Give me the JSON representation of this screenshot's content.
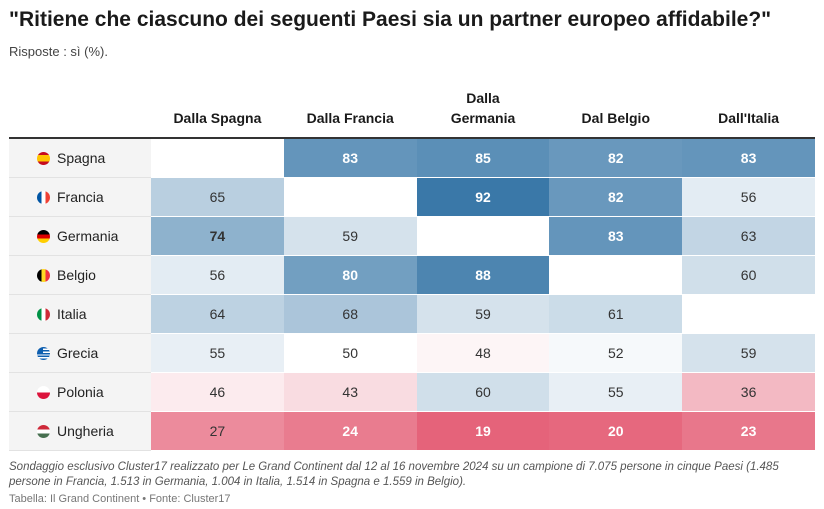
{
  "title": "\"Ritiene che ciascuno dei seguenti Paesi sia un partner europeo affidabile?\"",
  "subtitle": "Risposte : sì (%).",
  "chart_data": {
    "type": "heatmap",
    "columns": [
      "Dalla Spagna",
      "Dalla Francia",
      "Dalla Germania",
      "Dal Belgio",
      "Dall'Italia"
    ],
    "rows": [
      {
        "label": "Spagna",
        "flag": "spain-flag-icon",
        "values": [
          null,
          83,
          85,
          82,
          83
        ]
      },
      {
        "label": "Francia",
        "flag": "france-flag-icon",
        "values": [
          65,
          null,
          92,
          82,
          56
        ]
      },
      {
        "label": "Germania",
        "flag": "germany-flag-icon",
        "values": [
          74,
          59,
          null,
          83,
          63
        ]
      },
      {
        "label": "Belgio",
        "flag": "belgium-flag-icon",
        "values": [
          56,
          80,
          88,
          null,
          60
        ]
      },
      {
        "label": "Italia",
        "flag": "italy-flag-icon",
        "values": [
          64,
          68,
          59,
          61,
          null
        ]
      },
      {
        "label": "Grecia",
        "flag": "greece-flag-icon",
        "values": [
          55,
          50,
          48,
          52,
          59
        ]
      },
      {
        "label": "Polonia",
        "flag": "poland-flag-icon",
        "values": [
          46,
          43,
          60,
          55,
          36
        ]
      },
      {
        "label": "Ungheria",
        "flag": "hungary-flag-icon",
        "values": [
          27,
          24,
          19,
          20,
          23
        ]
      }
    ],
    "color_scale": {
      "low": "#e5637a",
      "mid": "#ffffff",
      "high": "#3a78a8"
    }
  },
  "footnote": "Sondaggio esclusivo Cluster17 realizzato per Le Grand Continent dal 12 al 16 novembre 2024 su un campione di 7.075 persone in cinque Paesi (1.485 persone in Francia, 1.513 in Germania, 1.004 in Italia, 1.514 in Spagna e 1.559 in Belgio).",
  "source": "Tabella: Il Grand Continent • Fonte: Cluster17"
}
